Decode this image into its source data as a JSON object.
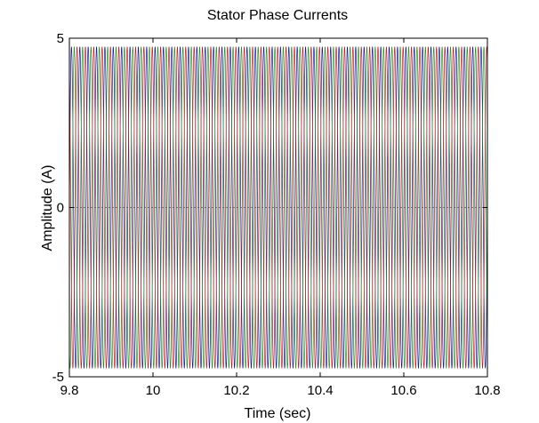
{
  "chart_data": {
    "type": "line",
    "title": "Stator Phase Currents",
    "xlabel": "Time (sec)",
    "ylabel": "Amplitude (A)",
    "xlim": [
      9.8,
      10.8
    ],
    "ylim": [
      -5,
      5
    ],
    "xticks": [
      "9.8",
      "10",
      "10.2",
      "10.4",
      "10.6",
      "10.8"
    ],
    "yticks": [
      "-5",
      "0",
      "5"
    ],
    "xtick_values": [
      9.8,
      10.0,
      10.2,
      10.4,
      10.6,
      10.8
    ],
    "ytick_values": [
      -5,
      0,
      5
    ],
    "zero_line": true,
    "grid": false,
    "series": [
      {
        "color": "#1a1a8c",
        "amplitude": 4.75,
        "phase_deg": 0
      },
      {
        "color": "#2e8b2e",
        "amplitude": 4.75,
        "phase_deg": -120
      },
      {
        "color": "#b22222",
        "amplitude": 4.75,
        "phase_deg": 120
      }
    ],
    "frequency_hz": 50
  }
}
